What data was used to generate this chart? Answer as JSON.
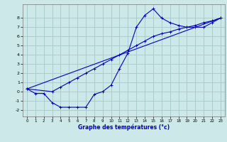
{
  "xlabel": "Graphe des températures (°c)",
  "background_color": "#cce8e8",
  "grid_color": "#aacccc",
  "line_color": "#0000bb",
  "xlim": [
    -0.5,
    23.5
  ],
  "ylim": [
    -2.7,
    9.5
  ],
  "xticks": [
    0,
    1,
    2,
    3,
    4,
    5,
    6,
    7,
    8,
    9,
    10,
    11,
    12,
    13,
    14,
    15,
    16,
    17,
    18,
    19,
    20,
    21,
    22,
    23
  ],
  "yticks": [
    -2,
    -1,
    0,
    1,
    2,
    3,
    4,
    5,
    6,
    7,
    8
  ],
  "line1_x": [
    0,
    23
  ],
  "line1_y": [
    0.3,
    8.0
  ],
  "line2_x": [
    0,
    1,
    2,
    3,
    4,
    5,
    6,
    7,
    8,
    9,
    10,
    11,
    12,
    13,
    14,
    15,
    16,
    17,
    18,
    19,
    20,
    21,
    22,
    23
  ],
  "line2_y": [
    0.3,
    -0.2,
    -0.2,
    -1.2,
    -1.7,
    -1.7,
    -1.7,
    -1.7,
    -0.3,
    0.0,
    0.7,
    2.5,
    4.2,
    7.0,
    8.3,
    9.0,
    8.0,
    7.5,
    7.2,
    7.0,
    7.0,
    7.0,
    7.5,
    8.0
  ],
  "line3_x": [
    0,
    3,
    4,
    5,
    6,
    7,
    8,
    9,
    10,
    11,
    12,
    13,
    14,
    15,
    16,
    17,
    18,
    19,
    20,
    21,
    22,
    23
  ],
  "line3_y": [
    0.3,
    0.0,
    0.5,
    1.0,
    1.5,
    2.0,
    2.5,
    3.0,
    3.5,
    4.0,
    4.5,
    5.0,
    5.5,
    6.0,
    6.3,
    6.5,
    6.8,
    7.0,
    7.2,
    7.5,
    7.7,
    8.0
  ]
}
